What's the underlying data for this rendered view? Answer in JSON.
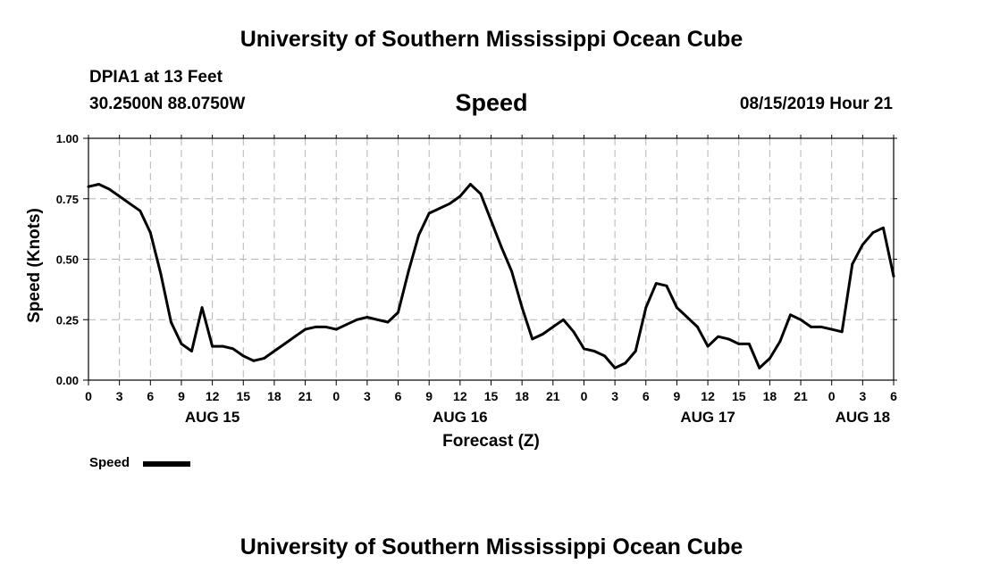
{
  "header": {
    "title": "University of Southern Mississippi Ocean Cube",
    "station": "DPIA1 at 13 Feet",
    "coordinates": "30.2500N 88.0750W",
    "chart_title": "Speed",
    "datetime": "08/15/2019 Hour 21"
  },
  "footer": {
    "title": "University of Southern Mississippi Ocean Cube"
  },
  "legend": {
    "label": "Speed",
    "color": "#000000"
  },
  "chart_data": {
    "type": "line",
    "title": "Speed",
    "xlabel": "Forecast (Z)",
    "ylabel": "Speed (Knots)",
    "ylim": [
      0,
      1
    ],
    "yticks": [
      0.0,
      0.25,
      0.5,
      0.75,
      1.0
    ],
    "ytick_labels": [
      "0.00",
      "0.25",
      "0.50",
      "0.75",
      "1.00"
    ],
    "xlim": [
      0,
      78
    ],
    "xticks": [
      0,
      3,
      6,
      9,
      12,
      15,
      18,
      21,
      24,
      27,
      30,
      33,
      36,
      39,
      42,
      45,
      48,
      51,
      54,
      57,
      60,
      63,
      66,
      69,
      72,
      75,
      78
    ],
    "xtick_labels": [
      "0",
      "3",
      "6",
      "9",
      "12",
      "15",
      "18",
      "21",
      "0",
      "3",
      "6",
      "9",
      "12",
      "15",
      "18",
      "21",
      "0",
      "3",
      "6",
      "9",
      "12",
      "15",
      "18",
      "21",
      "0",
      "3",
      "6"
    ],
    "day_labels": [
      {
        "hour": 12,
        "label": "AUG 15"
      },
      {
        "hour": 36,
        "label": "AUG 16"
      },
      {
        "hour": 60,
        "label": "AUG 17"
      },
      {
        "hour": 75,
        "label": "AUG 18"
      }
    ],
    "grid": true,
    "series": [
      {
        "name": "Speed",
        "x": [
          0,
          1,
          2,
          3,
          4,
          5,
          6,
          7,
          8,
          9,
          10,
          11,
          12,
          13,
          14,
          15,
          16,
          17,
          18,
          19,
          20,
          21,
          22,
          23,
          24,
          25,
          26,
          27,
          28,
          29,
          30,
          31,
          32,
          33,
          34,
          35,
          36,
          37,
          38,
          39,
          40,
          41,
          42,
          43,
          44,
          45,
          46,
          47,
          48,
          49,
          50,
          51,
          52,
          53,
          54,
          55,
          56,
          57,
          58,
          59,
          60,
          61,
          62,
          63,
          64,
          65,
          66,
          67,
          68,
          69,
          70,
          71,
          72,
          73,
          74,
          75,
          76,
          77,
          78
        ],
        "values": [
          0.8,
          0.81,
          0.79,
          0.76,
          0.73,
          0.7,
          0.61,
          0.44,
          0.24,
          0.15,
          0.12,
          0.3,
          0.14,
          0.14,
          0.13,
          0.1,
          0.08,
          0.09,
          0.12,
          0.15,
          0.18,
          0.21,
          0.22,
          0.22,
          0.21,
          0.23,
          0.25,
          0.26,
          0.25,
          0.24,
          0.28,
          0.45,
          0.6,
          0.69,
          0.71,
          0.73,
          0.76,
          0.81,
          0.77,
          0.66,
          0.55,
          0.45,
          0.3,
          0.17,
          0.19,
          0.22,
          0.25,
          0.2,
          0.13,
          0.12,
          0.1,
          0.05,
          0.07,
          0.12,
          0.3,
          0.4,
          0.39,
          0.3,
          0.26,
          0.22,
          0.14,
          0.18,
          0.17,
          0.15,
          0.15,
          0.05,
          0.09,
          0.16,
          0.27,
          0.25,
          0.22,
          0.22,
          0.21,
          0.2,
          0.48,
          0.56,
          0.61,
          0.63,
          0.43
        ]
      }
    ],
    "legend_position": "bottom-left"
  }
}
